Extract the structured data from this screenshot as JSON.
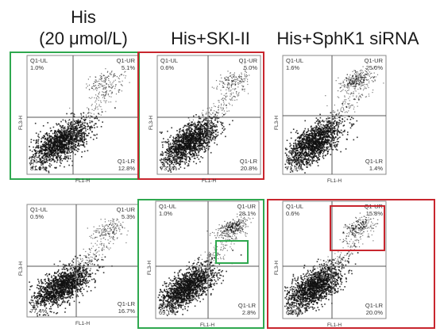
{
  "headers": {
    "his_line1": "His",
    "his_line2": "(20 μmol/L)",
    "ski": "His+SKI-II",
    "sphk": "His+SphK1 siRNA"
  },
  "axis_labels": {
    "x": "FL1-H",
    "y": "FL3-H"
  },
  "colors": {
    "green_frame": "#2fa84f",
    "red_frame": "#c8262e",
    "dots": "#111111",
    "quadrant_line": "#555555"
  },
  "panels": [
    {
      "id": "r1c1",
      "UL": "1.0%",
      "UR": "5.1%",
      "LL": "81.0%",
      "LR": "12.8%",
      "frame": "green",
      "ur_box": false,
      "nb_box": false
    },
    {
      "id": "r1c2",
      "UL": "0.6%",
      "UR": "5.0%",
      "LL": "73.6%",
      "LR": "20.8%",
      "frame": "red",
      "ur_box": false,
      "nb_box": false
    },
    {
      "id": "r1c3",
      "UL": "1.6%",
      "UR": "25.0%",
      "LL": "71.9%",
      "LR": "1.4%",
      "frame": "none",
      "ur_box": false,
      "nb_box": false
    },
    {
      "id": "r2c1",
      "UL": "0.5%",
      "UR": "5.3%",
      "LL": "77.4%",
      "LR": "16.7%",
      "frame": "none",
      "ur_box": false,
      "nb_box": false
    },
    {
      "id": "r2c2",
      "UL": "1.0%",
      "UR": "28.1%",
      "LL": "69.1%",
      "LR": "2.8%",
      "frame": "green",
      "ur_box": false,
      "nb_box": true
    },
    {
      "id": "r2c3",
      "UL": "0.6%",
      "UR": "15.8%",
      "LL": "63.6%",
      "LR": "20.0%",
      "frame": "red",
      "ur_box": true,
      "nb_box": false
    }
  ]
}
